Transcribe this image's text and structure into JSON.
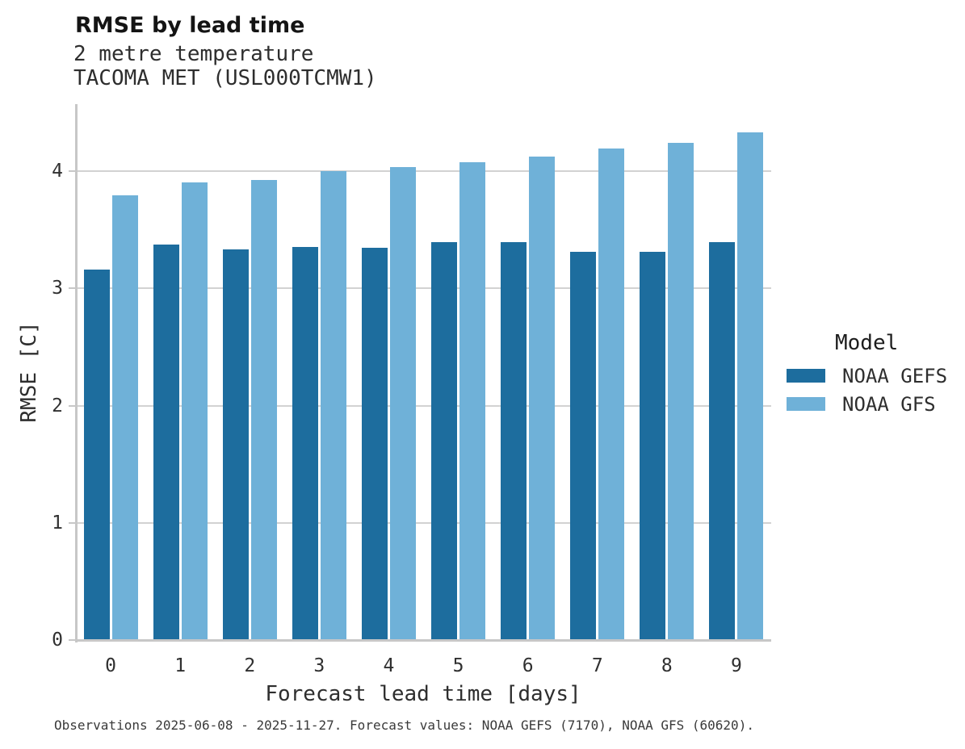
{
  "header": {
    "title": "RMSE by lead time",
    "subtitle_line1": "2 metre temperature",
    "subtitle_line2": "TACOMA MET (USL000TCMW1)"
  },
  "axes": {
    "x_title": "Forecast lead time [days]",
    "y_title": "RMSE [C]"
  },
  "legend": {
    "title": "Model",
    "items": [
      {
        "label": "NOAA GEFS",
        "color": "#1d6d9e"
      },
      {
        "label": "NOAA GFS",
        "color": "#6fb1d8"
      }
    ]
  },
  "caption": "Observations 2025-06-08 - 2025-11-27. Forecast values: NOAA GEFS (7170), NOAA GFS (60620).",
  "chart_data": {
    "type": "bar",
    "title": "RMSE by lead time",
    "subtitle": [
      "2 metre temperature",
      "TACOMA MET (USL000TCMW1)"
    ],
    "categories": [
      "0",
      "1",
      "2",
      "3",
      "4",
      "5",
      "6",
      "7",
      "8",
      "9"
    ],
    "series": [
      {
        "name": "NOAA GEFS",
        "color": "#1d6d9e",
        "values": [
          3.17,
          3.38,
          3.34,
          3.36,
          3.35,
          3.4,
          3.4,
          3.32,
          3.32,
          3.4
        ]
      },
      {
        "name": "NOAA GFS",
        "color": "#6fb1d8",
        "values": [
          3.8,
          3.91,
          3.93,
          4.01,
          4.04,
          4.08,
          4.13,
          4.2,
          4.25,
          4.34
        ]
      }
    ],
    "xlabel": "Forecast lead time [days]",
    "ylabel": "RMSE [C]",
    "ylim": [
      0,
      4.57
    ],
    "yticks": [
      0,
      1,
      2,
      3,
      4
    ],
    "grid": true,
    "legend_title": "Model",
    "legend_position": "right",
    "bar_grouping": "grouped"
  }
}
